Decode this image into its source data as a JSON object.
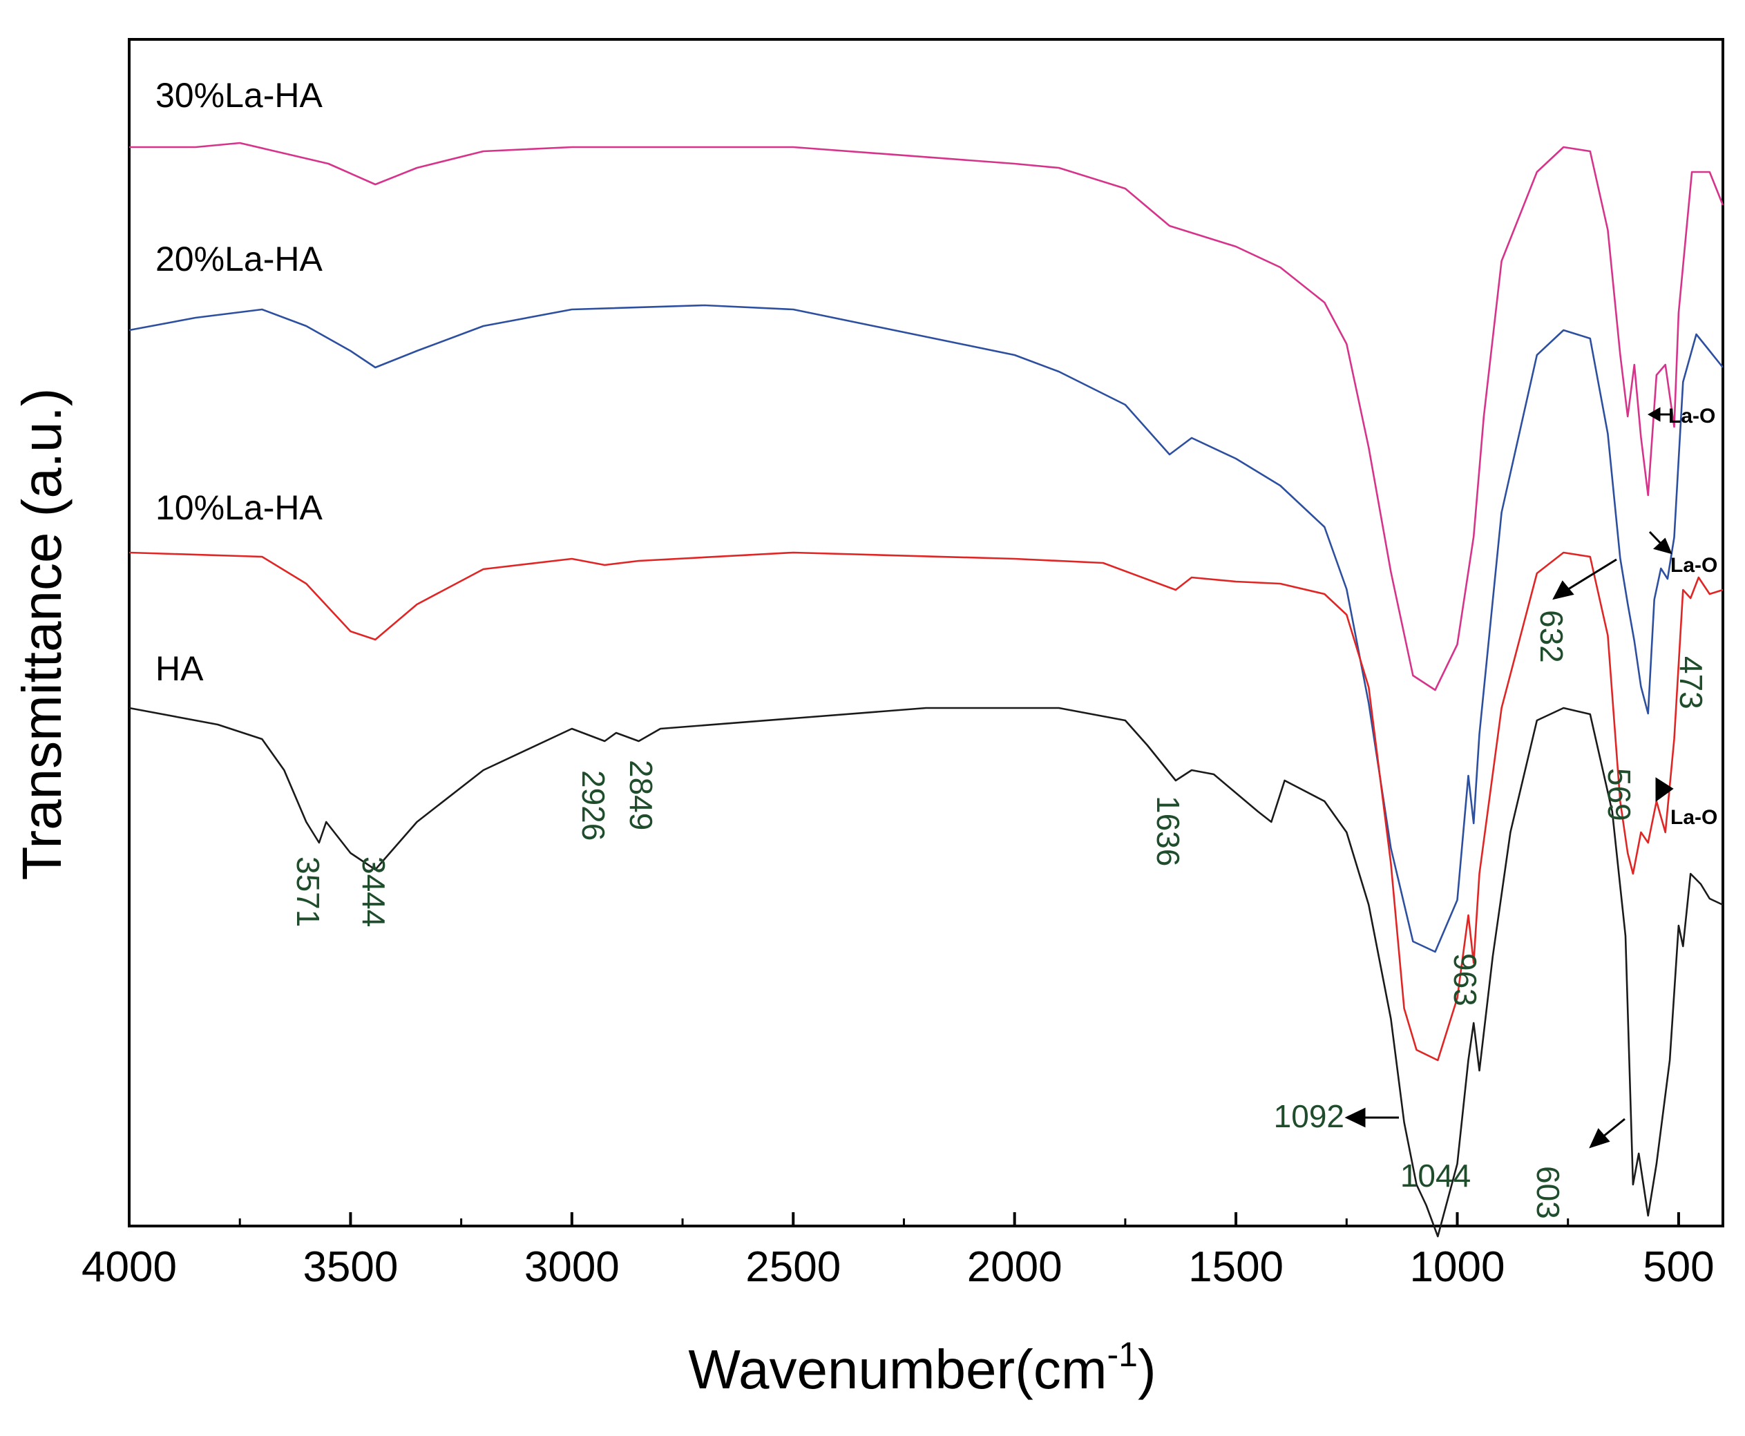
{
  "chart_data": {
    "type": "line",
    "xlabel": "Wavenumber(cm",
    "xlabel_sup": "-1",
    "xlabel_close": ")",
    "ylabel": "Transmittance (a.u.)",
    "xlim": [
      4000,
      400
    ],
    "x_reversed": true,
    "ylim": [
      -6.0,
      0.6
    ],
    "y_ticks_shown": false,
    "grid": false,
    "x_ticks": [
      4000,
      3500,
      3000,
      2500,
      2000,
      1500,
      1000,
      500
    ],
    "x_tick_labels": [
      "4000",
      "3500",
      "3000",
      "2500",
      "2000",
      "1500",
      "1000",
      "500"
    ],
    "series": [
      {
        "name": "30%La-HA",
        "color": "#d6338a",
        "points": [
          [
            4000,
            0
          ],
          [
            3850,
            0
          ],
          [
            3750,
            0.02
          ],
          [
            3650,
            -0.03
          ],
          [
            3550,
            -0.08
          ],
          [
            3444,
            -0.18
          ],
          [
            3350,
            -0.1
          ],
          [
            3200,
            -0.02
          ],
          [
            3000,
            0
          ],
          [
            2500,
            0
          ],
          [
            2000,
            -0.08
          ],
          [
            1900,
            -0.1
          ],
          [
            1750,
            -0.2
          ],
          [
            1650,
            -0.38
          ],
          [
            1500,
            -0.48
          ],
          [
            1400,
            -0.58
          ],
          [
            1300,
            -0.75
          ],
          [
            1250,
            -0.95
          ],
          [
            1200,
            -1.45
          ],
          [
            1150,
            -2.05
          ],
          [
            1100,
            -2.55
          ],
          [
            1050,
            -2.62
          ],
          [
            1000,
            -2.4
          ],
          [
            963,
            -1.88
          ],
          [
            940,
            -1.3
          ],
          [
            900,
            -0.55
          ],
          [
            820,
            -0.12
          ],
          [
            760,
            0.0
          ],
          [
            700,
            -0.02
          ],
          [
            660,
            -0.4
          ],
          [
            632,
            -1.0
          ],
          [
            615,
            -1.3
          ],
          [
            600,
            -1.05
          ],
          [
            585,
            -1.4
          ],
          [
            569,
            -1.68
          ],
          [
            550,
            -1.1
          ],
          [
            530,
            -1.05
          ],
          [
            510,
            -1.35
          ],
          [
            500,
            -0.8
          ],
          [
            470,
            -0.12
          ],
          [
            430,
            -0.12
          ],
          [
            400,
            -0.28
          ]
        ]
      },
      {
        "name": "20%La-HA",
        "color": "#2d4fa0",
        "points": [
          [
            4000,
            0
          ],
          [
            3850,
            0.06
          ],
          [
            3700,
            0.1
          ],
          [
            3600,
            0.02
          ],
          [
            3500,
            -0.1
          ],
          [
            3444,
            -0.18
          ],
          [
            3350,
            -0.1
          ],
          [
            3200,
            0.02
          ],
          [
            3000,
            0.1
          ],
          [
            2700,
            0.12
          ],
          [
            2500,
            0.1
          ],
          [
            2000,
            -0.12
          ],
          [
            1900,
            -0.2
          ],
          [
            1750,
            -0.36
          ],
          [
            1650,
            -0.6
          ],
          [
            1600,
            -0.52
          ],
          [
            1500,
            -0.62
          ],
          [
            1400,
            -0.75
          ],
          [
            1300,
            -0.95
          ],
          [
            1250,
            -1.25
          ],
          [
            1200,
            -1.8
          ],
          [
            1150,
            -2.5
          ],
          [
            1100,
            -2.95
          ],
          [
            1050,
            -3.0
          ],
          [
            1000,
            -2.75
          ],
          [
            975,
            -2.15
          ],
          [
            963,
            -2.38
          ],
          [
            950,
            -1.95
          ],
          [
            900,
            -0.88
          ],
          [
            820,
            -0.12
          ],
          [
            760,
            0.0
          ],
          [
            700,
            -0.04
          ],
          [
            660,
            -0.5
          ],
          [
            632,
            -1.1
          ],
          [
            615,
            -1.32
          ],
          [
            600,
            -1.5
          ],
          [
            585,
            -1.72
          ],
          [
            569,
            -1.85
          ],
          [
            555,
            -1.3
          ],
          [
            540,
            -1.15
          ],
          [
            525,
            -1.2
          ],
          [
            510,
            -1.0
          ],
          [
            490,
            -0.25
          ],
          [
            460,
            -0.02
          ],
          [
            430,
            -0.1
          ],
          [
            400,
            -0.18
          ]
        ]
      },
      {
        "name": "10%La-HA",
        "color": "#e02525",
        "points": [
          [
            4000,
            0
          ],
          [
            3700,
            -0.02
          ],
          [
            3600,
            -0.15
          ],
          [
            3500,
            -0.38
          ],
          [
            3444,
            -0.42
          ],
          [
            3350,
            -0.25
          ],
          [
            3200,
            -0.08
          ],
          [
            3000,
            -0.03
          ],
          [
            2926,
            -0.06
          ],
          [
            2849,
            -0.04
          ],
          [
            2500,
            0
          ],
          [
            2000,
            -0.03
          ],
          [
            1800,
            -0.05
          ],
          [
            1636,
            -0.18
          ],
          [
            1600,
            -0.12
          ],
          [
            1500,
            -0.14
          ],
          [
            1400,
            -0.15
          ],
          [
            1300,
            -0.2
          ],
          [
            1250,
            -0.3
          ],
          [
            1200,
            -0.65
          ],
          [
            1150,
            -1.5
          ],
          [
            1120,
            -2.2
          ],
          [
            1092,
            -2.4
          ],
          [
            1044,
            -2.45
          ],
          [
            1000,
            -2.15
          ],
          [
            975,
            -1.75
          ],
          [
            963,
            -1.98
          ],
          [
            950,
            -1.55
          ],
          [
            900,
            -0.75
          ],
          [
            820,
            -0.1
          ],
          [
            760,
            0.0
          ],
          [
            700,
            -0.02
          ],
          [
            660,
            -0.4
          ],
          [
            632,
            -1.2
          ],
          [
            615,
            -1.45
          ],
          [
            603,
            -1.55
          ],
          [
            585,
            -1.35
          ],
          [
            569,
            -1.4
          ],
          [
            550,
            -1.2
          ],
          [
            530,
            -1.35
          ],
          [
            510,
            -0.9
          ],
          [
            490,
            -0.18
          ],
          [
            473,
            -0.22
          ],
          [
            455,
            -0.12
          ],
          [
            430,
            -0.2
          ],
          [
            400,
            -0.18
          ]
        ]
      },
      {
        "name": "HA",
        "color": "#1a1a1a",
        "points": [
          [
            4000,
            0
          ],
          [
            3800,
            -0.08
          ],
          [
            3700,
            -0.15
          ],
          [
            3650,
            -0.3
          ],
          [
            3600,
            -0.55
          ],
          [
            3571,
            -0.65
          ],
          [
            3555,
            -0.55
          ],
          [
            3500,
            -0.7
          ],
          [
            3444,
            -0.78
          ],
          [
            3350,
            -0.55
          ],
          [
            3200,
            -0.3
          ],
          [
            3000,
            -0.1
          ],
          [
            2926,
            -0.16
          ],
          [
            2900,
            -0.12
          ],
          [
            2849,
            -0.16
          ],
          [
            2800,
            -0.1
          ],
          [
            2500,
            -0.05
          ],
          [
            2200,
            0.0
          ],
          [
            1900,
            0.0
          ],
          [
            1750,
            -0.06
          ],
          [
            1700,
            -0.18
          ],
          [
            1636,
            -0.35
          ],
          [
            1600,
            -0.3
          ],
          [
            1550,
            -0.32
          ],
          [
            1450,
            -0.5
          ],
          [
            1420,
            -0.55
          ],
          [
            1390,
            -0.35
          ],
          [
            1300,
            -0.45
          ],
          [
            1250,
            -0.6
          ],
          [
            1200,
            -0.95
          ],
          [
            1150,
            -1.5
          ],
          [
            1120,
            -2.0
          ],
          [
            1092,
            -2.3
          ],
          [
            1070,
            -2.4
          ],
          [
            1044,
            -2.55
          ],
          [
            1000,
            -2.2
          ],
          [
            975,
            -1.7
          ],
          [
            963,
            -1.52
          ],
          [
            950,
            -1.75
          ],
          [
            920,
            -1.2
          ],
          [
            880,
            -0.6
          ],
          [
            820,
            -0.06
          ],
          [
            760,
            0.0
          ],
          [
            700,
            -0.03
          ],
          [
            650,
            -0.5
          ],
          [
            620,
            -1.1
          ],
          [
            603,
            -2.3
          ],
          [
            590,
            -2.15
          ],
          [
            569,
            -2.45
          ],
          [
            550,
            -2.2
          ],
          [
            520,
            -1.7
          ],
          [
            500,
            -1.05
          ],
          [
            490,
            -1.15
          ],
          [
            473,
            -0.8
          ],
          [
            450,
            -0.85
          ],
          [
            430,
            -0.92
          ],
          [
            400,
            -0.95
          ]
        ]
      }
    ],
    "series_labels": [
      "30%La-HA",
      "20%La-HA",
      "10%La-HA",
      "HA"
    ],
    "peak_annotations": [
      "3571",
      "3444",
      "2926",
      "2849",
      "1636",
      "963",
      "1092",
      "1044",
      "603",
      "632",
      "569",
      "473"
    ],
    "la_o_labels": [
      "La-O",
      "La-O",
      "La-O"
    ]
  }
}
